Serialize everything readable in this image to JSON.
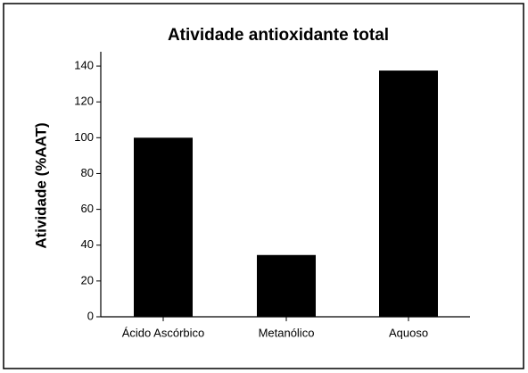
{
  "chart_data": {
    "type": "bar",
    "title": "Atividade antioxidante total",
    "y_label": "Atividade (%AAT)",
    "categories": [
      "Ácido Ascórbico",
      "Metanólico",
      "Aquoso"
    ],
    "values": [
      100,
      34.5,
      137.5
    ],
    "color": "#000000",
    "ylim": [
      0,
      148
    ],
    "yticks": [
      0,
      20,
      40,
      60,
      80,
      100,
      120,
      140
    ],
    "grid": false
  }
}
